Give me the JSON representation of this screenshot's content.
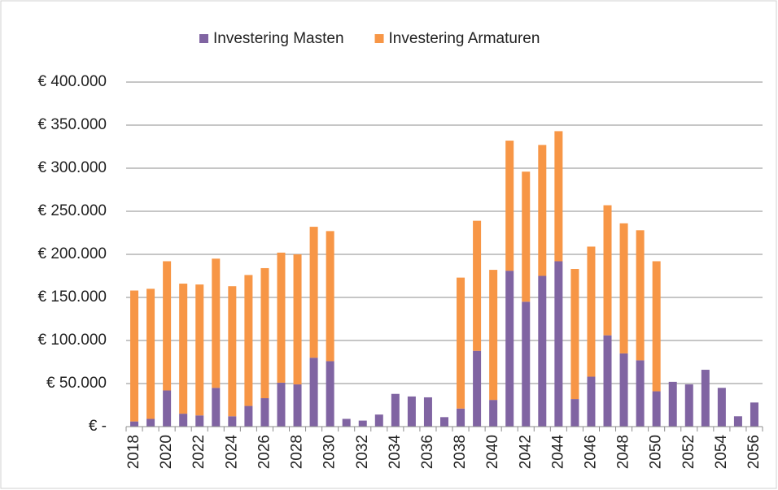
{
  "chart_data": {
    "type": "stacked_bar",
    "categories": [
      "2018",
      null,
      "2020",
      null,
      "2022",
      null,
      "2024",
      null,
      "2026",
      null,
      "2028",
      null,
      "2030",
      null,
      "2032",
      null,
      "2034",
      null,
      "2036",
      null,
      "2038",
      null,
      "2040",
      null,
      "2042",
      null,
      "2044",
      null,
      "2046",
      null,
      "2048",
      null,
      "2050",
      null,
      "2052",
      null,
      "2054",
      null,
      "2056"
    ],
    "series": [
      {
        "name": "Investering Masten",
        "color": "#8064a2",
        "values": [
          6000,
          9000,
          42000,
          15000,
          13000,
          45000,
          12000,
          24000,
          33000,
          51000,
          49000,
          80000,
          76000,
          9000,
          7000,
          14000,
          38000,
          35000,
          34000,
          11000,
          21000,
          88000,
          31000,
          181000,
          145000,
          175000,
          192000,
          32000,
          58000,
          106000,
          85000,
          77000,
          41000,
          52000,
          49000,
          66000,
          45000,
          12000,
          28000
        ]
      },
      {
        "name": "Investering Armaturen",
        "color": "#f79646",
        "values": [
          152000,
          151000,
          150000,
          151000,
          152000,
          150000,
          151000,
          152000,
          151000,
          151000,
          151000,
          152000,
          151000,
          0,
          0,
          0,
          0,
          0,
          0,
          0,
          152000,
          151000,
          151000,
          151000,
          151000,
          152000,
          151000,
          151000,
          151000,
          151000,
          151000,
          151000,
          151000,
          0,
          0,
          0,
          0,
          0,
          0
        ]
      }
    ],
    "ylim": [
      0,
      400000
    ],
    "yticks": [
      {
        "value": 0,
        "label": "€ -"
      },
      {
        "value": 50000,
        "label": "€ 50.000"
      },
      {
        "value": 100000,
        "label": "€ 100.000"
      },
      {
        "value": 150000,
        "label": "€ 150.000"
      },
      {
        "value": 200000,
        "label": "€ 200.000"
      },
      {
        "value": 250000,
        "label": "€ 250.000"
      },
      {
        "value": 300000,
        "label": "€ 300.000"
      },
      {
        "value": 350000,
        "label": "€ 350.000"
      },
      {
        "value": 400000,
        "label": "€ 400.000"
      }
    ],
    "grid": true,
    "legend": "top"
  }
}
